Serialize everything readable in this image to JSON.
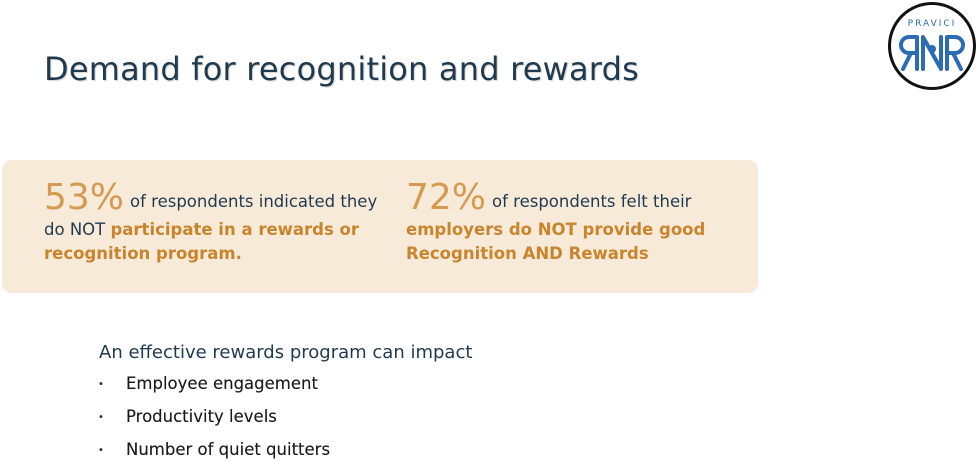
{
  "slide": {
    "title": "Demand for recognition and rewards"
  },
  "logo": {
    "word": "PRAVICI",
    "icon": "rnr-logo-icon",
    "colors": {
      "primary": "#2b6cb5",
      "ring": "#111111"
    }
  },
  "stats": [
    {
      "percent": "53%",
      "lead": "of respondents indicated they do NOT ",
      "accent": "participate in a rewards or recognition program."
    },
    {
      "percent": "72%",
      "lead": "of respondents felt their ",
      "accent": "employers do NOT provide good Recognition AND Rewards"
    }
  ],
  "impact": {
    "intro": "An effective rewards program can impact",
    "bullet_glyph": "•",
    "items": [
      "Employee engagement",
      "Productivity levels",
      "Number of quiet quitters"
    ]
  },
  "colors": {
    "title": "#1f3a4f",
    "accent": "#c8852d",
    "percent": "#d49a4f",
    "panel": "#f8ead8"
  }
}
